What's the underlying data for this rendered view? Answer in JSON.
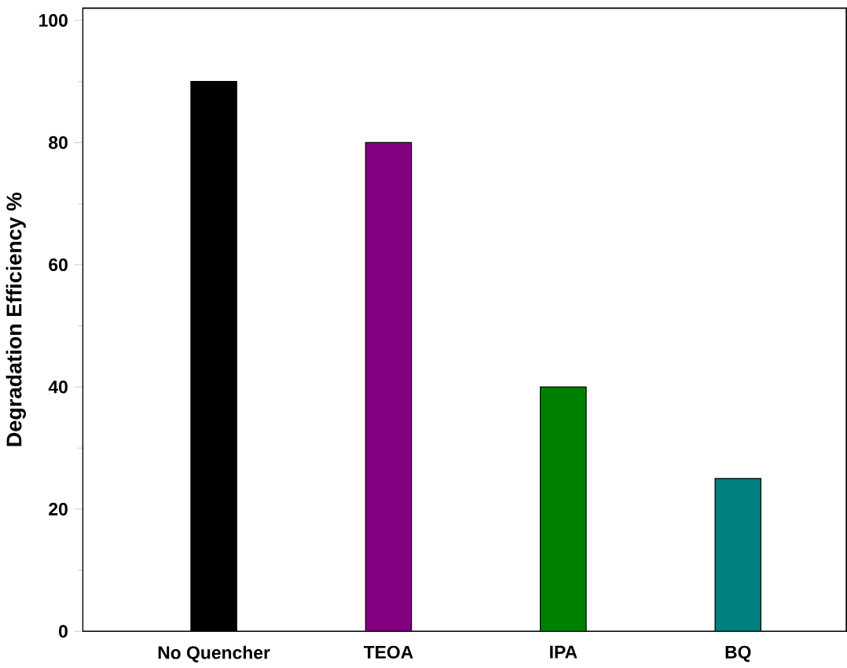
{
  "chart_data": {
    "type": "bar",
    "ylabel": "Degradation Efficiency %",
    "categories": [
      "No Quencher",
      "TEOA",
      "IPA",
      "BQ"
    ],
    "values": [
      90,
      80,
      40,
      25
    ],
    "colors": [
      "#000000",
      "#800080",
      "#008000",
      "#008080"
    ],
    "ylim": [
      0,
      102
    ],
    "yticks": [
      0,
      20,
      40,
      60,
      80,
      100
    ]
  }
}
